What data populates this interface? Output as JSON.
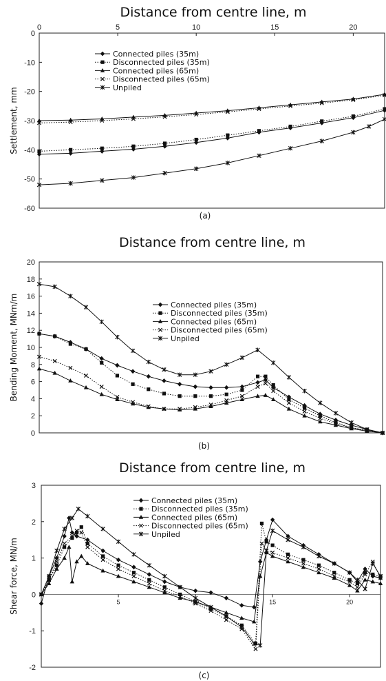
{
  "chart_data": [
    {
      "type": "line",
      "title": "Distance from centre line, m",
      "ylabel": "Settlement, mm",
      "caption": "(a)",
      "xlim": [
        0,
        22
      ],
      "ylim": [
        -60,
        0
      ],
      "xticks": [
        0,
        5,
        10,
        15,
        20
      ],
      "yticks": [
        0,
        -10,
        -20,
        -30,
        -40,
        -50,
        -60
      ],
      "xaxis_position": "top",
      "series": [
        {
          "name": "Connected piles (35m)",
          "marker": "diamond",
          "dash": "solid",
          "x": [
            0,
            2,
            4,
            6,
            8,
            10,
            12,
            14,
            16,
            18,
            20,
            22
          ],
          "y": [
            -41.5,
            -41.2,
            -40.5,
            -39.8,
            -38.8,
            -37.5,
            -36,
            -34,
            -32.5,
            -30.8,
            -29,
            -26.5
          ]
        },
        {
          "name": "Disconnected piles (35m)",
          "marker": "square",
          "dash": "dotted",
          "x": [
            0,
            2,
            4,
            6,
            8,
            10,
            12,
            14,
            16,
            18,
            20,
            22
          ],
          "y": [
            -40.5,
            -40,
            -39.5,
            -38.8,
            -37.8,
            -36.5,
            -35,
            -33.5,
            -32,
            -30.2,
            -28.5,
            -26
          ]
        },
        {
          "name": "Connected piles (65m)",
          "marker": "triangle",
          "dash": "solid",
          "x": [
            0,
            2,
            4,
            6,
            8,
            10,
            12,
            14,
            16,
            18,
            20,
            22
          ],
          "y": [
            -30,
            -29.8,
            -29.4,
            -28.8,
            -28.2,
            -27.4,
            -26.6,
            -25.6,
            -24.6,
            -23.6,
            -22.6,
            -21
          ]
        },
        {
          "name": "Disconnected piles (65m)",
          "marker": "x",
          "dash": "dotted",
          "x": [
            0,
            2,
            4,
            6,
            8,
            10,
            12,
            14,
            16,
            18,
            20,
            22
          ],
          "y": [
            -30.8,
            -30.5,
            -30,
            -29.4,
            -28.7,
            -27.9,
            -27,
            -26,
            -25,
            -24,
            -22.9,
            -21.3
          ]
        },
        {
          "name": "Unpiled",
          "marker": "star",
          "dash": "solid",
          "x": [
            0,
            2,
            4,
            6,
            8,
            10,
            12,
            14,
            16,
            18,
            20,
            21,
            22
          ],
          "y": [
            -52,
            -51.5,
            -50.5,
            -49.5,
            -48,
            -46.5,
            -44.5,
            -42,
            -39.5,
            -37,
            -34,
            -32,
            -29.5
          ]
        }
      ]
    },
    {
      "type": "line",
      "title": "Distance from centre line, m",
      "ylabel": "Bending Moment, MNm/m",
      "caption": "(b)",
      "xlim": [
        0,
        22
      ],
      "ylim": [
        0,
        20
      ],
      "yticks": [
        0,
        2,
        4,
        6,
        8,
        10,
        12,
        14,
        16,
        18,
        20
      ],
      "series": [
        {
          "name": "Connected piles (35m)",
          "marker": "diamond",
          "dash": "solid",
          "x": [
            0,
            1,
            2,
            3,
            4,
            5,
            6,
            7,
            8,
            9,
            10,
            11,
            12,
            13,
            14,
            14.5,
            15,
            16,
            17,
            18,
            19,
            20,
            21,
            22
          ],
          "y": [
            11.6,
            11.3,
            10.6,
            9.8,
            8.7,
            7.9,
            7.2,
            6.6,
            6.1,
            5.7,
            5.4,
            5.3,
            5.3,
            5.4,
            5.9,
            6.2,
            5.3,
            4.2,
            3.2,
            2.2,
            1.5,
            0.9,
            0.4,
            0
          ]
        },
        {
          "name": "Disconnected piles (35m)",
          "marker": "square",
          "dash": "dotted",
          "x": [
            0,
            1,
            2,
            3,
            4,
            5,
            6,
            7,
            8,
            9,
            10,
            11,
            12,
            13,
            14,
            14.5,
            15,
            16,
            17,
            18,
            19,
            20,
            21,
            22
          ],
          "y": [
            11.6,
            11.3,
            10.4,
            9.8,
            8.2,
            6.7,
            5.7,
            5.1,
            4.6,
            4.3,
            4.3,
            4.3,
            4.5,
            5,
            6.6,
            6.6,
            5.6,
            3.9,
            2.9,
            2,
            1.2,
            0.6,
            0.3,
            0
          ]
        },
        {
          "name": "Connected piles (65m)",
          "marker": "triangle",
          "dash": "solid",
          "x": [
            0,
            1,
            2,
            3,
            4,
            5,
            6,
            7,
            8,
            9,
            10,
            11,
            12,
            13,
            14,
            14.5,
            15,
            16,
            17,
            18,
            19,
            20,
            21,
            22
          ],
          "y": [
            7.5,
            7,
            6.1,
            5.3,
            4.5,
            3.9,
            3.4,
            3,
            2.8,
            2.7,
            2.8,
            3.1,
            3.5,
            3.9,
            4.3,
            4.4,
            3.9,
            2.8,
            2,
            1.3,
            0.9,
            0.5,
            0.2,
            0
          ]
        },
        {
          "name": "Disconnected piles (65m)",
          "marker": "x",
          "dash": "dotted",
          "x": [
            0,
            1,
            2,
            3,
            4,
            5,
            6,
            7,
            8,
            9,
            10,
            11,
            12,
            13,
            14,
            14.5,
            15,
            16,
            17,
            18,
            19,
            20,
            21,
            22
          ],
          "y": [
            8.9,
            8.4,
            7.6,
            6.7,
            5.4,
            4.2,
            3.6,
            3.1,
            2.8,
            2.8,
            3,
            3.3,
            3.8,
            4.3,
            5.4,
            5.8,
            4.9,
            3.5,
            2.5,
            1.7,
            1.1,
            0.6,
            0.3,
            0
          ]
        },
        {
          "name": "Unpiled",
          "marker": "star",
          "dash": "solid",
          "x": [
            0,
            1,
            2,
            3,
            4,
            5,
            6,
            7,
            8,
            9,
            10,
            11,
            12,
            13,
            14,
            15,
            16,
            17,
            18,
            19,
            20,
            21,
            22
          ],
          "y": [
            17.4,
            17.1,
            16,
            14.7,
            13,
            11.2,
            9.6,
            8.3,
            7.4,
            6.8,
            6.8,
            7.2,
            8,
            8.8,
            9.7,
            8.2,
            6.5,
            4.9,
            3.5,
            2.3,
            1.2,
            0.4,
            0
          ]
        }
      ]
    },
    {
      "type": "line",
      "title": "Distance from centre line, m",
      "ylabel": "Shear force, MN/m",
      "caption": "(c)",
      "xlim": [
        0,
        22
      ],
      "ylim": [
        -2,
        3
      ],
      "xticks": [
        5,
        10,
        15,
        20
      ],
      "yticks": [
        3,
        2,
        1,
        0,
        -1,
        -2
      ],
      "series": [
        {
          "name": "Connected piles (35m)",
          "marker": "diamond",
          "dash": "solid",
          "x": [
            0,
            0.5,
            1,
            1.5,
            1.8,
            2,
            2.3,
            3,
            4,
            5,
            6,
            7,
            8,
            9,
            10,
            11,
            12,
            13,
            13.8,
            14.2,
            14.6,
            15,
            16,
            17,
            18,
            19,
            20,
            20.5,
            21,
            21.5,
            22
          ],
          "y": [
            -0.25,
            0.5,
            1,
            1.6,
            2.1,
            1.7,
            1.6,
            1.5,
            1.2,
            0.95,
            0.75,
            0.55,
            0.35,
            0.2,
            0.1,
            0.05,
            -0.1,
            -0.3,
            -0.35,
            0.9,
            1.5,
            2.05,
            1.6,
            1.35,
            1.1,
            0.85,
            0.6,
            0.35,
            0.7,
            0.5,
            0.45
          ]
        },
        {
          "name": "Disconnected piles (35m)",
          "marker": "square",
          "dash": "dotted",
          "x": [
            0,
            0.5,
            1,
            1.5,
            2,
            2.3,
            2.6,
            3,
            4,
            5,
            6,
            7,
            8,
            9,
            10,
            11,
            12,
            13,
            13.9,
            14.3,
            14.6,
            15,
            16,
            17,
            18,
            19,
            20,
            20.5,
            21,
            21.5,
            22
          ],
          "y": [
            0,
            0.4,
            0.8,
            1.3,
            1.55,
            1.7,
            1.85,
            1.4,
            1.05,
            0.8,
            0.6,
            0.4,
            0.2,
            0,
            -0.2,
            -0.4,
            -0.6,
            -0.85,
            -1.35,
            1.95,
            1.45,
            1.35,
            1.1,
            0.95,
            0.8,
            0.6,
            0.4,
            0.3,
            0.6,
            0.55,
            0.5
          ]
        },
        {
          "name": "Connected piles (65m)",
          "marker": "triangle",
          "dash": "solid",
          "x": [
            0,
            0.5,
            1,
            1.5,
            1.8,
            2,
            2.3,
            2.6,
            3,
            4,
            5,
            6,
            7,
            8,
            9,
            10,
            11,
            12,
            13,
            13.8,
            14.2,
            14.6,
            15,
            16,
            17,
            18,
            19,
            20,
            20.5,
            21,
            21.5,
            22
          ],
          "y": [
            0,
            0.3,
            0.7,
            1,
            1.3,
            0.35,
            0.9,
            1.05,
            0.85,
            0.65,
            0.5,
            0.35,
            0.2,
            0.05,
            -0.1,
            -0.2,
            -0.35,
            -0.5,
            -0.65,
            -0.75,
            0.5,
            1.15,
            1.05,
            0.9,
            0.75,
            0.6,
            0.45,
            0.25,
            0.1,
            0.4,
            0.35,
            0.3
          ]
        },
        {
          "name": "Disconnected piles (65m)",
          "marker": "x",
          "dash": "dotted",
          "x": [
            0,
            0.5,
            1,
            1.5,
            2,
            2.3,
            2.6,
            3,
            4,
            5,
            6,
            7,
            8,
            9,
            10,
            11,
            12,
            13,
            13.9,
            14.3,
            14.6,
            15,
            16,
            17,
            18,
            19,
            20,
            20.5,
            21,
            21.5,
            22
          ],
          "y": [
            0,
            0.4,
            0.9,
            1.4,
            1.6,
            1.75,
            1.7,
            1.3,
            0.95,
            0.7,
            0.5,
            0.3,
            0.1,
            -0.05,
            -0.25,
            -0.45,
            -0.7,
            -0.95,
            -1.5,
            1.4,
            1.2,
            1.15,
            1,
            0.85,
            0.7,
            0.5,
            0.35,
            0.2,
            0.55,
            0.9,
            0.45
          ]
        },
        {
          "name": "Unpiled",
          "marker": "star",
          "dash": "solid",
          "x": [
            0,
            0.5,
            1,
            1.5,
            2,
            2.4,
            3,
            4,
            5,
            6,
            7,
            8,
            9,
            10,
            11,
            12,
            13,
            13.8,
            14.2,
            14.6,
            15,
            16,
            17,
            18,
            19,
            20,
            20.5,
            21,
            21.5,
            22
          ],
          "y": [
            0,
            0.5,
            1.2,
            1.8,
            2.1,
            2.35,
            2.15,
            1.8,
            1.45,
            1.1,
            0.8,
            0.5,
            0.2,
            -0.1,
            -0.35,
            -0.6,
            -0.9,
            -1.35,
            -1.4,
            1.2,
            1.75,
            1.5,
            1.3,
            1.05,
            0.85,
            0.6,
            0.4,
            0.15,
            0.85,
            0.5
          ]
        }
      ]
    }
  ]
}
